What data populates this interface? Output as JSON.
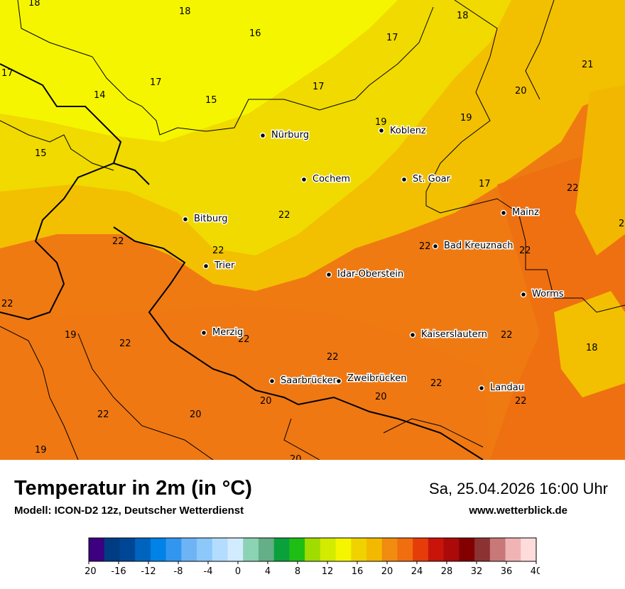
{
  "header": {
    "title": "Temperatur in 2m (in °C)",
    "model": "Modell: ICON-D2 12z, Deutscher Wetterdienst",
    "datetime": "Sa, 25.04.2026 16:00 Uhr",
    "website": "www.wetterblick.de"
  },
  "colors": {
    "t14": "#f5f500",
    "t16": "#f0dc00",
    "t18": "#f2c300",
    "t20": "#f08c0f",
    "t22": "#ef7813",
    "border": "#000000"
  },
  "cities": [
    {
      "name": "Nürburg"
    },
    {
      "name": "Koblenz"
    },
    {
      "name": "Cochem"
    },
    {
      "name": "St. Goar"
    },
    {
      "name": "Mainz"
    },
    {
      "name": "Bitburg"
    },
    {
      "name": "Bad Kreuznach"
    },
    {
      "name": "Trier"
    },
    {
      "name": "Idar-Oberstein"
    },
    {
      "name": "Worms"
    },
    {
      "name": "Merzig"
    },
    {
      "name": "Kaiserslautern"
    },
    {
      "name": "Saarbrücken"
    },
    {
      "name": "Zweibrücken"
    },
    {
      "name": "Landau"
    }
  ],
  "isotherm_labels": [
    "18",
    "18",
    "16",
    "17",
    "18",
    "17",
    "17",
    "14",
    "15",
    "17",
    "21",
    "20",
    "19",
    "19",
    "15",
    "17",
    "22",
    "22",
    "22",
    "22",
    "22",
    "22",
    "22",
    "2",
    "22",
    "22",
    "19",
    "22",
    "22",
    "18",
    "22",
    "20",
    "20",
    "22",
    "20",
    "19",
    "20",
    "22"
  ],
  "legend": {
    "ticks": [
      "-20",
      "-16",
      "-12",
      "-8",
      "-4",
      "0",
      "4",
      "8",
      "12",
      "16",
      "20",
      "24",
      "28",
      "32",
      "36",
      "40"
    ],
    "colors": [
      "#3c0080",
      "#003c82",
      "#004696",
      "#0064be",
      "#0082e6",
      "#3296f0",
      "#6eb4f5",
      "#8cc8fa",
      "#b4dcff",
      "#d2ebff",
      "#8cd2b4",
      "#64af87",
      "#0aa03c",
      "#1ebe14",
      "#a0dc00",
      "#d2eb00",
      "#f5f500",
      "#f0d200",
      "#f2b900",
      "#f08c0f",
      "#f06e10",
      "#e63c0a",
      "#c8140a",
      "#aa0a0a",
      "#820000",
      "#8c3232",
      "#c87878",
      "#f0b4b4",
      "#ffdcdc"
    ]
  }
}
